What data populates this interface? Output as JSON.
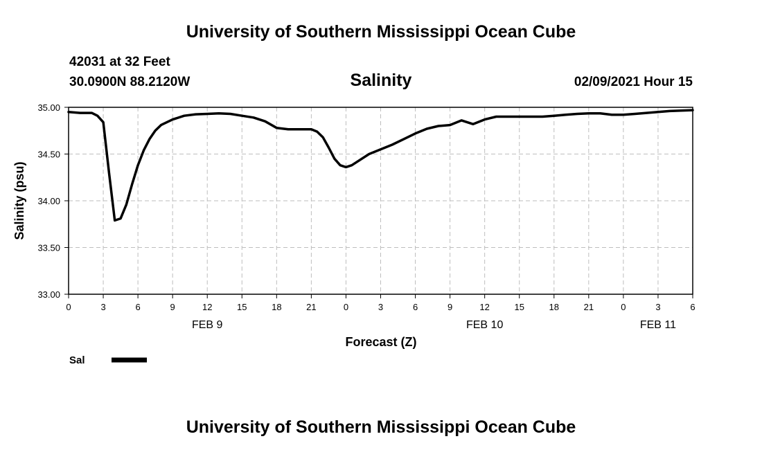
{
  "header": {
    "title_top": "University of Southern Mississippi Ocean Cube",
    "title_bottom": "University of Southern Mississippi Ocean Cube",
    "station": "42031 at 32 Feet",
    "location": "30.0900N 88.2120W",
    "datetime": "02/09/2021 Hour 15"
  },
  "legend": {
    "label": "Sal",
    "color": "#000000"
  },
  "chart_data": {
    "type": "line",
    "title": "Salinity",
    "xlabel": "Forecast (Z)",
    "ylabel": "Salinity (psu)",
    "xlim": [
      0,
      54
    ],
    "ylim": [
      33.0,
      35.0
    ],
    "y_ticks": [
      "33.00",
      "33.50",
      "34.00",
      "34.50",
      "35.00"
    ],
    "x_tick_labels": [
      "0",
      "3",
      "6",
      "9",
      "12",
      "15",
      "18",
      "21",
      "0",
      "3",
      "6",
      "9",
      "12",
      "15",
      "18",
      "21",
      "0",
      "3",
      "6"
    ],
    "day_labels": [
      {
        "label": "FEB 9",
        "x": 12
      },
      {
        "label": "FEB 10",
        "x": 36
      },
      {
        "label": "FEB 11",
        "x": 51
      }
    ],
    "grid": true,
    "series": [
      {
        "name": "Sal",
        "color": "#000000",
        "x": [
          0,
          1,
          2,
          2.5,
          3,
          3.5,
          4,
          4.5,
          5,
          5.5,
          6,
          6.5,
          7,
          7.5,
          8,
          9,
          10,
          11,
          12,
          13,
          14,
          15,
          16,
          17,
          18,
          19,
          20,
          21,
          21.5,
          22,
          22.5,
          23,
          23.5,
          24,
          24.5,
          25,
          26,
          27,
          28,
          29,
          30,
          31,
          32,
          33,
          34,
          35,
          36,
          37,
          38,
          39,
          40,
          41,
          42,
          43,
          44,
          45,
          46,
          47,
          48,
          49,
          50,
          51,
          52,
          53,
          54
        ],
        "y": [
          34.95,
          34.94,
          34.94,
          34.91,
          34.84,
          34.3,
          33.79,
          33.81,
          33.96,
          34.18,
          34.38,
          34.54,
          34.66,
          34.75,
          34.81,
          34.87,
          34.91,
          34.925,
          34.93,
          34.935,
          34.93,
          34.91,
          34.89,
          34.85,
          34.78,
          34.765,
          34.765,
          34.765,
          34.74,
          34.68,
          34.57,
          34.45,
          34.38,
          34.36,
          34.38,
          34.42,
          34.5,
          34.55,
          34.6,
          34.66,
          34.72,
          34.77,
          34.8,
          34.81,
          34.86,
          34.82,
          34.87,
          34.9,
          34.9,
          34.9,
          34.9,
          34.9,
          34.91,
          34.92,
          34.93,
          34.935,
          34.935,
          34.92,
          34.92,
          34.93,
          34.94,
          34.95,
          34.96,
          34.965,
          34.97
        ]
      }
    ]
  }
}
